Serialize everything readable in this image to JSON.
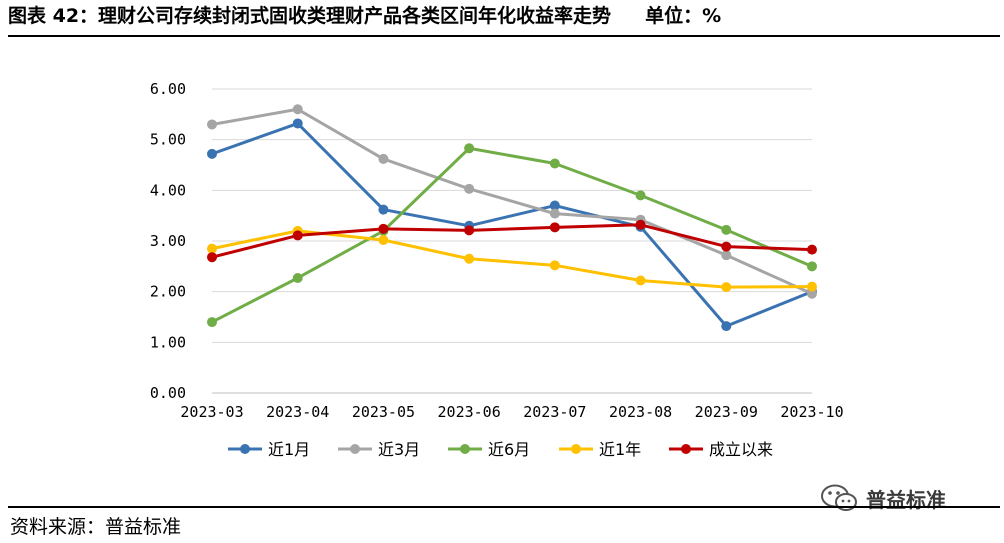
{
  "header": {
    "title": "图表 42：理财公司存续封闭式固收类理财产品各类区间年化收益率走势",
    "unit": "单位：%"
  },
  "footer": {
    "source": "资料来源：普益标准",
    "watermark": "普益标准"
  },
  "colors": {
    "近1月": "#3A73B2",
    "近3月": "#A5A5A5",
    "近6月": "#70AD47",
    "近1年": "#FFC000",
    "成立以来": "#C00000"
  },
  "chart_data": {
    "type": "line",
    "categories": [
      "2023-03",
      "2023-04",
      "2023-05",
      "2023-06",
      "2023-07",
      "2023-08",
      "2023-09",
      "2023-10"
    ],
    "ylim": [
      0,
      6
    ],
    "yticks": [
      "0.00",
      "1.00",
      "2.00",
      "3.00",
      "4.00",
      "5.00",
      "6.00"
    ],
    "grid": true,
    "legend_position": "bottom",
    "series": [
      {
        "name": "近1月",
        "color": "#3A73B2",
        "values": [
          4.72,
          5.32,
          3.62,
          3.3,
          3.7,
          3.28,
          1.32,
          2.0
        ]
      },
      {
        "name": "近3月",
        "color": "#A5A5A5",
        "values": [
          5.3,
          5.6,
          4.62,
          4.03,
          3.54,
          3.42,
          2.72,
          1.96
        ]
      },
      {
        "name": "近6月",
        "color": "#70AD47",
        "values": [
          1.4,
          2.27,
          3.2,
          4.83,
          4.53,
          3.9,
          3.22,
          2.5
        ]
      },
      {
        "name": "近1年",
        "color": "#FFC000",
        "values": [
          2.85,
          3.2,
          3.02,
          2.65,
          2.52,
          2.22,
          2.09,
          2.1
        ]
      },
      {
        "name": "成立以来",
        "color": "#C00000",
        "values": [
          2.68,
          3.11,
          3.24,
          3.21,
          3.27,
          3.32,
          2.89,
          2.83
        ]
      }
    ]
  }
}
